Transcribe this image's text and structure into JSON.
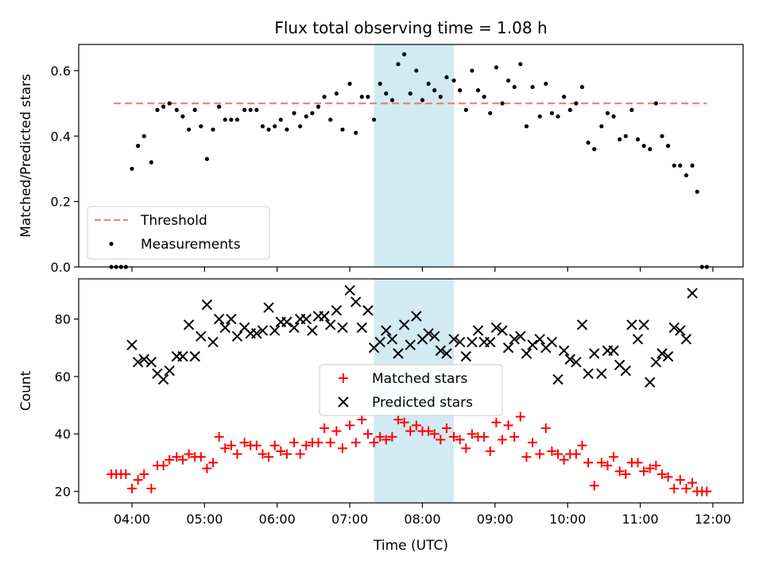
{
  "figure": {
    "title": "Flux total observing time = 1.08 h",
    "xlabel": "Time (UTC)",
    "x_ticks": [
      "04:00",
      "05:00",
      "06:00",
      "07:00",
      "08:00",
      "09:00",
      "10:00",
      "11:00",
      "12:00"
    ]
  },
  "chart_data": [
    {
      "type": "scatter",
      "panel": "top",
      "ylabel": "Matched/Predicted stars",
      "ylim": [
        0,
        0.68
      ],
      "y_ticks": [
        "0.0",
        "0.2",
        "0.4",
        "0.6"
      ],
      "xlim": [
        "03:16",
        "12:25"
      ],
      "highlight_band": {
        "from": "07:20",
        "to": "08:26",
        "color": "#add8e6"
      },
      "threshold": {
        "name": "Threshold",
        "y": 0.5,
        "x_from": "03:45",
        "x_to": "11:55",
        "color": "#f08080",
        "style": "dashed"
      },
      "legend": {
        "position": "lower left",
        "entries": [
          "Threshold",
          "Measurements"
        ]
      },
      "series": [
        {
          "name": "Measurements",
          "marker": "dot",
          "color": "#000000",
          "x": [
            "03:43",
            "03:47",
            "03:51",
            "03:55",
            "04:00",
            "04:05",
            "04:10",
            "04:16",
            "04:21",
            "04:26",
            "04:31",
            "04:37",
            "04:42",
            "04:47",
            "04:52",
            "04:57",
            "05:02",
            "05:07",
            "05:12",
            "05:17",
            "05:22",
            "05:27",
            "05:33",
            "05:38",
            "05:43",
            "05:48",
            "05:53",
            "05:58",
            "06:03",
            "06:08",
            "06:14",
            "06:19",
            "06:24",
            "06:29",
            "06:34",
            "06:39",
            "06:44",
            "06:49",
            "06:54",
            "07:00",
            "07:05",
            "07:10",
            "07:15",
            "07:20",
            "07:25",
            "07:30",
            "07:35",
            "07:40",
            "07:45",
            "07:50",
            "07:55",
            "08:00",
            "08:05",
            "08:10",
            "08:15",
            "08:20",
            "08:26",
            "08:31",
            "08:36",
            "08:41",
            "08:46",
            "08:51",
            "08:56",
            "09:01",
            "09:06",
            "09:11",
            "09:16",
            "09:21",
            "09:26",
            "09:31",
            "09:37",
            "09:42",
            "09:47",
            "09:52",
            "09:57",
            "10:02",
            "10:07",
            "10:12",
            "10:17",
            "10:22",
            "10:28",
            "10:33",
            "10:38",
            "10:43",
            "10:48",
            "10:53",
            "10:58",
            "11:03",
            "11:08",
            "11:13",
            "11:18",
            "11:23",
            "11:28",
            "11:33",
            "11:38",
            "11:43",
            "11:47",
            "11:51",
            "11:55"
          ],
          "y": [
            0,
            0,
            0,
            0,
            0.3,
            0.37,
            0.4,
            0.32,
            0.48,
            0.49,
            0.5,
            0.48,
            0.46,
            0.42,
            0.48,
            0.43,
            0.33,
            0.42,
            0.49,
            0.45,
            0.45,
            0.45,
            0.48,
            0.48,
            0.48,
            0.43,
            0.42,
            0.43,
            0.45,
            0.42,
            0.47,
            0.43,
            0.46,
            0.47,
            0.49,
            0.52,
            0.45,
            0.53,
            0.42,
            0.56,
            0.41,
            0.52,
            0.52,
            0.45,
            0.56,
            0.53,
            0.51,
            0.62,
            0.65,
            0.53,
            0.6,
            0.51,
            0.56,
            0.54,
            0.52,
            0.58,
            0.57,
            0.54,
            0.48,
            0.6,
            0.54,
            0.52,
            0.47,
            0.61,
            0.5,
            0.57,
            0.55,
            0.62,
            0.43,
            0.55,
            0.46,
            0.56,
            0.47,
            0.46,
            0.52,
            0.48,
            0.5,
            0.55,
            0.38,
            0.36,
            0.43,
            0.47,
            0.46,
            0.39,
            0.4,
            0.48,
            0.39,
            0.37,
            0.36,
            0.5,
            0.4,
            0.37,
            0.31,
            0.31,
            0.28,
            0.31,
            0.23,
            0,
            0
          ]
        }
      ]
    },
    {
      "type": "scatter",
      "panel": "bottom",
      "ylabel": "Count",
      "ylim": [
        16,
        94
      ],
      "y_ticks": [
        "20",
        "40",
        "60",
        "80"
      ],
      "xlim": [
        "03:16",
        "12:25"
      ],
      "highlight_band": {
        "from": "07:20",
        "to": "08:26",
        "color": "#add8e6"
      },
      "legend": {
        "position": "center",
        "entries": [
          "Matched stars",
          "Predicted stars"
        ]
      },
      "series": [
        {
          "name": "Matched stars",
          "marker": "plus",
          "color": "#ff0000",
          "x": [
            "03:43",
            "03:47",
            "03:51",
            "03:55",
            "04:00",
            "04:05",
            "04:10",
            "04:16",
            "04:21",
            "04:26",
            "04:31",
            "04:37",
            "04:42",
            "04:47",
            "04:52",
            "04:57",
            "05:02",
            "05:07",
            "05:12",
            "05:17",
            "05:22",
            "05:27",
            "05:33",
            "05:38",
            "05:43",
            "05:48",
            "05:53",
            "05:58",
            "06:03",
            "06:08",
            "06:14",
            "06:19",
            "06:24",
            "06:29",
            "06:34",
            "06:39",
            "06:44",
            "06:49",
            "06:54",
            "07:00",
            "07:05",
            "07:10",
            "07:15",
            "07:20",
            "07:25",
            "07:30",
            "07:35",
            "07:40",
            "07:45",
            "07:50",
            "07:55",
            "08:00",
            "08:05",
            "08:10",
            "08:15",
            "08:20",
            "08:26",
            "08:31",
            "08:36",
            "08:41",
            "08:46",
            "08:51",
            "08:56",
            "09:01",
            "09:06",
            "09:11",
            "09:16",
            "09:21",
            "09:26",
            "09:31",
            "09:37",
            "09:42",
            "09:47",
            "09:52",
            "09:57",
            "10:02",
            "10:07",
            "10:12",
            "10:17",
            "10:22",
            "10:28",
            "10:33",
            "10:38",
            "10:43",
            "10:48",
            "10:53",
            "10:58",
            "11:03",
            "11:08",
            "11:13",
            "11:18",
            "11:23",
            "11:28",
            "11:33",
            "11:38",
            "11:43",
            "11:47",
            "11:51",
            "11:55"
          ],
          "y": [
            26,
            26,
            26,
            26,
            21,
            24,
            26,
            21,
            29,
            29,
            31,
            32,
            31,
            33,
            32,
            32,
            28,
            30,
            39,
            35,
            36,
            33,
            37,
            36,
            36,
            33,
            32,
            36,
            34,
            33,
            37,
            33,
            36,
            37,
            37,
            42,
            37,
            41,
            35,
            43,
            37,
            45,
            40,
            37,
            39,
            38,
            39,
            45,
            44,
            41,
            43,
            41,
            41,
            40,
            38,
            42,
            39,
            38,
            35,
            40,
            39,
            39,
            34,
            44,
            38,
            43,
            39,
            46,
            32,
            37,
            33,
            42,
            34,
            33,
            31,
            33,
            33,
            36,
            30,
            22,
            30,
            29,
            32,
            27,
            26,
            30,
            30,
            27,
            28,
            29,
            26,
            25,
            21,
            24,
            21,
            23,
            20,
            20,
            20
          ]
        },
        {
          "name": "Predicted stars",
          "marker": "x",
          "color": "#000000",
          "x": [
            "04:00",
            "04:05",
            "04:10",
            "04:16",
            "04:21",
            "04:26",
            "04:31",
            "04:37",
            "04:42",
            "04:47",
            "04:52",
            "04:57",
            "05:02",
            "05:07",
            "05:12",
            "05:17",
            "05:22",
            "05:27",
            "05:33",
            "05:38",
            "05:43",
            "05:48",
            "05:53",
            "05:58",
            "06:03",
            "06:08",
            "06:14",
            "06:19",
            "06:24",
            "06:29",
            "06:34",
            "06:39",
            "06:44",
            "06:49",
            "06:54",
            "07:00",
            "07:05",
            "07:10",
            "07:15",
            "07:20",
            "07:25",
            "07:30",
            "07:35",
            "07:40",
            "07:45",
            "07:50",
            "07:55",
            "08:00",
            "08:05",
            "08:10",
            "08:15",
            "08:20",
            "08:26",
            "08:31",
            "08:36",
            "08:41",
            "08:46",
            "08:51",
            "08:56",
            "09:01",
            "09:06",
            "09:11",
            "09:16",
            "09:21",
            "09:26",
            "09:31",
            "09:37",
            "09:42",
            "09:47",
            "09:52",
            "09:57",
            "10:02",
            "10:07",
            "10:12",
            "10:17",
            "10:22",
            "10:28",
            "10:33",
            "10:38",
            "10:43",
            "10:48",
            "10:53",
            "10:58",
            "11:03",
            "11:08",
            "11:13",
            "11:18",
            "11:23",
            "11:28",
            "11:33",
            "11:38",
            "11:43"
          ],
          "y": [
            71,
            65,
            66,
            65,
            61,
            59,
            62,
            67,
            67,
            78,
            67,
            74,
            85,
            72,
            80,
            77,
            80,
            74,
            77,
            75,
            75,
            76,
            84,
            76,
            79,
            79,
            77,
            80,
            80,
            76,
            81,
            81,
            78,
            83,
            77,
            90,
            86,
            77,
            83,
            70,
            72,
            76,
            73,
            68,
            78,
            71,
            81,
            73,
            75,
            74,
            69,
            68,
            73,
            72,
            67,
            72,
            76,
            72,
            72,
            77,
            76,
            70,
            73,
            74,
            68,
            71,
            73,
            70,
            72,
            59,
            69,
            66,
            65,
            78,
            61,
            68,
            61,
            69,
            69,
            64,
            62,
            78,
            73,
            78,
            58,
            65,
            68,
            67,
            77,
            76,
            73,
            89
          ]
        }
      ]
    }
  ]
}
